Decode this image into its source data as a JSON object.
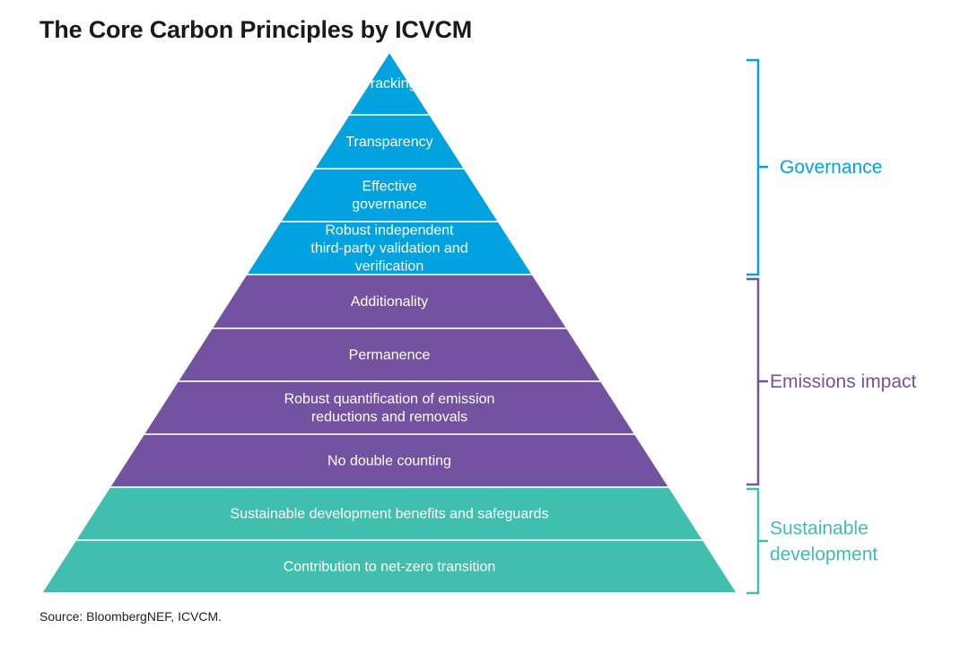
{
  "title": "The Core Carbon Principles by ICVCM",
  "source": "Source: BloombergNEF, ICVCM.",
  "colors": {
    "governance": "#00A3E0",
    "emissions": "#7352A2",
    "sustainable": "#40BFAE"
  },
  "levels": [
    {
      "lines": [
        "Tracking"
      ],
      "group": "governance"
    },
    {
      "lines": [
        "Transparency"
      ],
      "group": "governance"
    },
    {
      "lines": [
        "Effective",
        "governance"
      ],
      "group": "governance"
    },
    {
      "lines": [
        "Robust independent",
        "third-party validation and",
        "verification"
      ],
      "group": "governance"
    },
    {
      "lines": [
        "Additionality"
      ],
      "group": "emissions"
    },
    {
      "lines": [
        "Permanence"
      ],
      "group": "emissions"
    },
    {
      "lines": [
        "Robust quantification of emission",
        "reductions and removals"
      ],
      "group": "emissions"
    },
    {
      "lines": [
        "No double counting"
      ],
      "group": "emissions"
    },
    {
      "lines": [
        "Sustainable development benefits and safeguards"
      ],
      "group": "sustainable"
    },
    {
      "lines": [
        "Contribution to net-zero transition"
      ],
      "group": "sustainable"
    }
  ],
  "groups": [
    {
      "key": "governance",
      "lines": [
        "Governance"
      ]
    },
    {
      "key": "emissions",
      "lines": [
        "Emissions impact"
      ]
    },
    {
      "key": "sustainable",
      "lines": [
        "Sustainable",
        "development"
      ]
    }
  ]
}
